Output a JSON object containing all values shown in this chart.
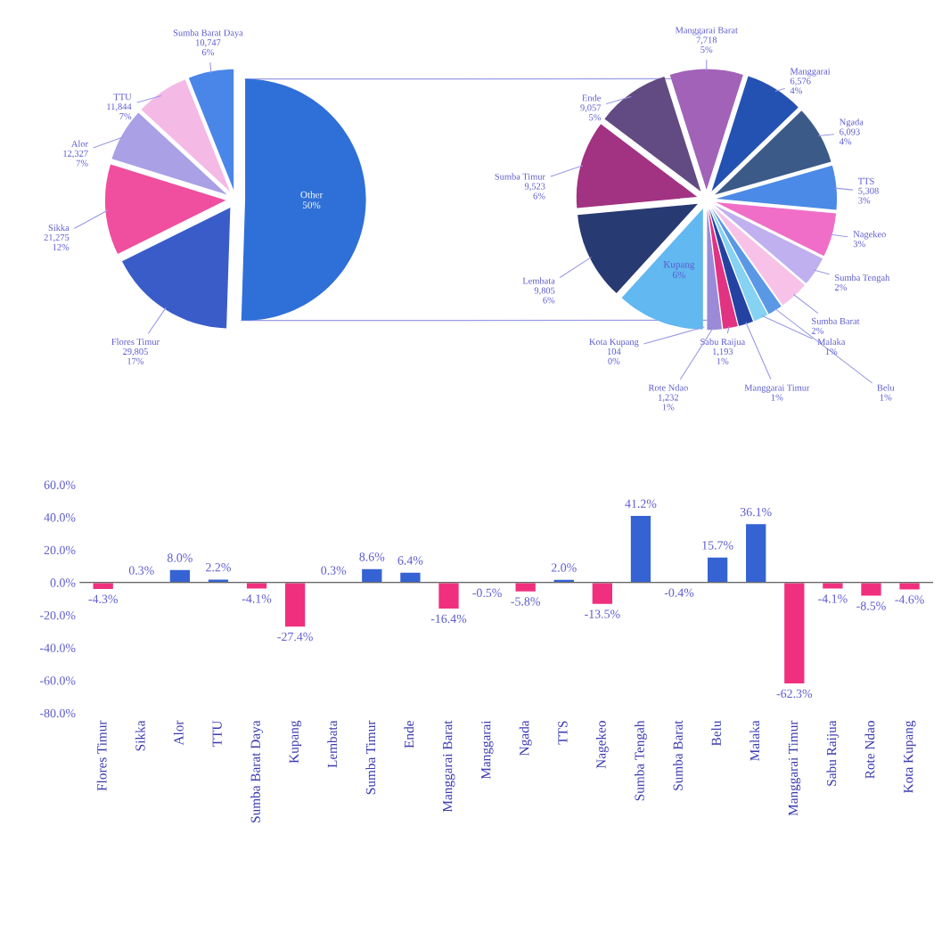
{
  "chart_data": [
    {
      "type": "pie",
      "categories": [
        "Other",
        "Flores Timur",
        "Sikka",
        "Alor",
        "TTU",
        "Sumba Barat Daya"
      ],
      "values": [
        50,
        17,
        12,
        7,
        7,
        6
      ],
      "colors": [
        "#2f6fd8",
        "#3a5cc8",
        "#f04e9e",
        "#a9a0e6",
        "#f5b9e6",
        "#4a86e8"
      ],
      "value_labels": [
        "50%",
        "29,805\n17%",
        "21,275\n12%",
        "12,327\n7%",
        "11,844\n7%",
        "10,747\n6%"
      ]
    },
    {
      "type": "pie",
      "categories": [
        "Manggarai Barat",
        "Manggarai",
        "Ngada",
        "TTS",
        "Nagekeo",
        "Sumba Tengah",
        "Sumba Barat",
        "Belu",
        "Malaka",
        "Manggarai Timur",
        "Sabu Raijua",
        "Rote Ndao",
        "Kota Kupang",
        "Kupang",
        "Lembata",
        "Sumba Timur",
        "Ende"
      ],
      "values": [
        5,
        4,
        4,
        3,
        3,
        2,
        2,
        1,
        1,
        1,
        1,
        1,
        0,
        6,
        6,
        6,
        5
      ],
      "colors": [
        "#a262b8",
        "#2452b2",
        "#3b5a88",
        "#4b8ae6",
        "#f06ec8",
        "#c0b0f0",
        "#f8c2e8",
        "#5a98e6",
        "#86d2f2",
        "#2442a2",
        "#e23282",
        "#9a8ad8",
        "#c8c0e8",
        "#62b8f0",
        "#283a72",
        "#a23282",
        "#624a82"
      ],
      "value_labels": [
        "7,718\n5%",
        "6,576\n4%",
        "6,093\n4%",
        "5,308\n3%",
        "3%",
        "2%",
        "2%",
        "1%",
        "1%",
        "1%",
        "1,193\n1%",
        "1,232\n1%",
        "104\n0%",
        "6%",
        "9,805\n6%",
        "9,523\n6%",
        "9,057\n5%"
      ]
    },
    {
      "type": "bar",
      "categories": [
        "Flores Timur",
        "Sikka",
        "Alor",
        "TTU",
        "Sumba Barat Daya",
        "Kupang",
        "Lembata",
        "Sumba Timur",
        "Ende",
        "Manggarai Barat",
        "Manggarai",
        "Ngada",
        "TTS",
        "Nagekeo",
        "Sumba Tengah",
        "Sumba Barat",
        "Belu",
        "Malaka",
        "Manggarai Timur",
        "Sabu Raijua",
        "Rote Ndao",
        "Kota Kupang"
      ],
      "values": [
        -4.3,
        0.3,
        8.0,
        2.2,
        -4.1,
        -27.4,
        0.3,
        8.6,
        6.4,
        -16.4,
        -0.5,
        -5.8,
        2.0,
        -13.5,
        41.2,
        -0.4,
        15.7,
        36.1,
        -62.3,
        -4.1,
        -8.5,
        -4.6
      ],
      "colors": [
        "#f0307e",
        "#3563d3",
        "#3563d3",
        "#3563d3",
        "#f0307e",
        "#f0307e",
        "#3563d3",
        "#3563d3",
        "#3563d3",
        "#f0307e",
        "#f0307e",
        "#f0307e",
        "#3563d3",
        "#f0307e",
        "#3563d3",
        "#f0307e",
        "#3563d3",
        "#3563d3",
        "#f0307e",
        "#f0307e",
        "#f0307e",
        "#f0307e"
      ],
      "value_labels": [
        "-4.3%",
        "0.3%",
        "8.0%",
        "2.2%",
        "-4.1%",
        "-27.4%",
        "0.3%",
        "8.6%",
        "6.4%",
        "-16.4%",
        "-0.5%",
        "-5.8%",
        "2.0%",
        "-13.5%",
        "41.2%",
        "-0.4%",
        "15.7%",
        "36.1%",
        "-62.3%",
        "-4.1%",
        "-8.5%",
        "-4.6%"
      ],
      "ylim": [
        -80,
        60
      ],
      "yticks": [
        {
          "value": -80,
          "label": "-80.0%"
        },
        {
          "value": -60,
          "label": "-60.0%"
        },
        {
          "value": -40,
          "label": "-40.0%"
        },
        {
          "value": -20,
          "label": "-20.0%"
        },
        {
          "value": 0,
          "label": "0.0%"
        },
        {
          "value": 20,
          "label": "20.0%"
        },
        {
          "value": 40,
          "label": "40.0%"
        },
        {
          "value": 60,
          "label": "60.0%"
        }
      ]
    }
  ]
}
